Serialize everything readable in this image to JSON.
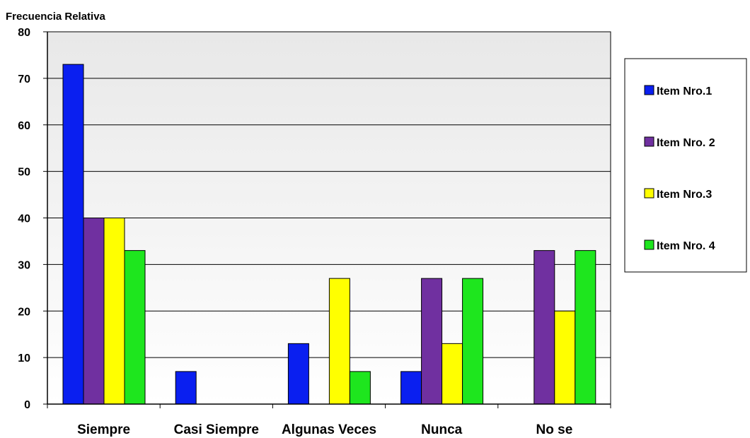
{
  "chart_data": {
    "type": "bar",
    "ylabel": "Frecuencia Relativa",
    "xlabel": "",
    "title": "",
    "categories": [
      "Siempre",
      "Casi Siempre",
      "Algunas Veces",
      "Nunca",
      "No se"
    ],
    "ylim": [
      0,
      80
    ],
    "yticks": [
      0,
      10,
      20,
      30,
      40,
      50,
      60,
      70,
      80
    ],
    "grid": true,
    "legend_position": "right",
    "series": [
      {
        "name": "Item Nro.1",
        "color": "#0a1ff0",
        "values": [
          73,
          7,
          13,
          7,
          0
        ]
      },
      {
        "name": "Item Nro. 2",
        "color": "#7030a0",
        "values": [
          40,
          0,
          0,
          27,
          33
        ]
      },
      {
        "name": "Item Nro.3",
        "color": "#ffff00",
        "values": [
          40,
          0,
          27,
          13,
          20
        ]
      },
      {
        "name": "Item Nro. 4",
        "color": "#1ee61e",
        "values": [
          33,
          0,
          7,
          27,
          33
        ]
      }
    ]
  }
}
